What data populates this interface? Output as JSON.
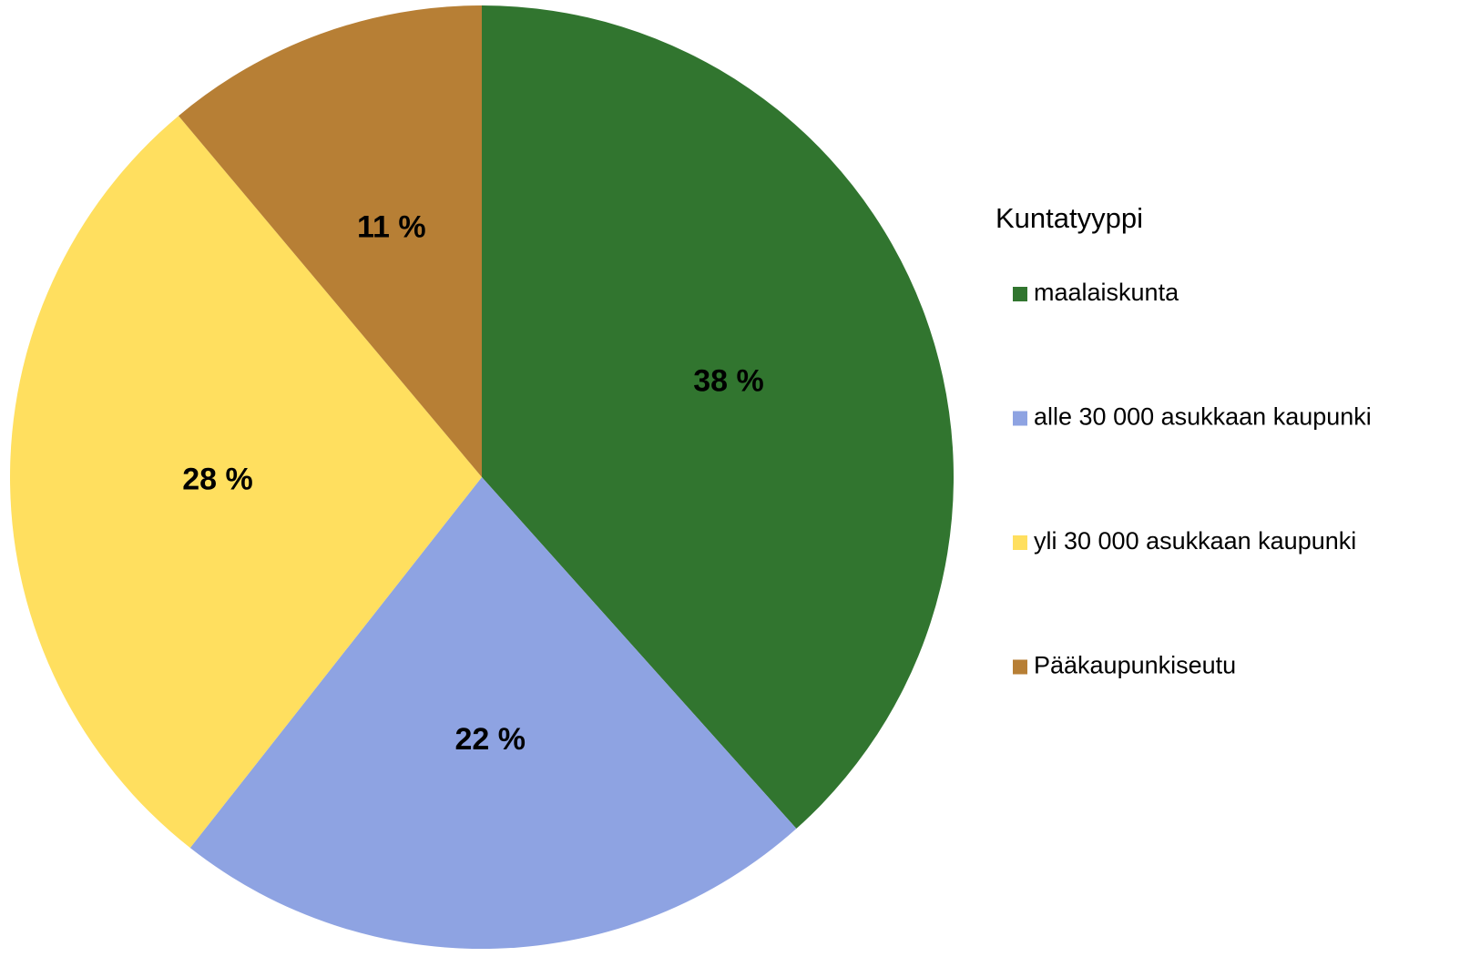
{
  "chart_data": {
    "type": "pie",
    "legend_title": "Kuntatyyppi",
    "categories": [
      "maalaiskunta",
      "alle 30 000 asukkaan kaupunki",
      "yli 30 000 asukkaan kaupunki",
      "Pääkaupunkiseutu"
    ],
    "values": [
      38,
      22,
      28,
      11
    ],
    "value_labels": [
      "38 %",
      "22 %",
      "28 %",
      "11 %"
    ],
    "colors": [
      "#31752f",
      "#8ea3e2",
      "#ffdf5f",
      "#b77f35"
    ],
    "legend": "right"
  }
}
